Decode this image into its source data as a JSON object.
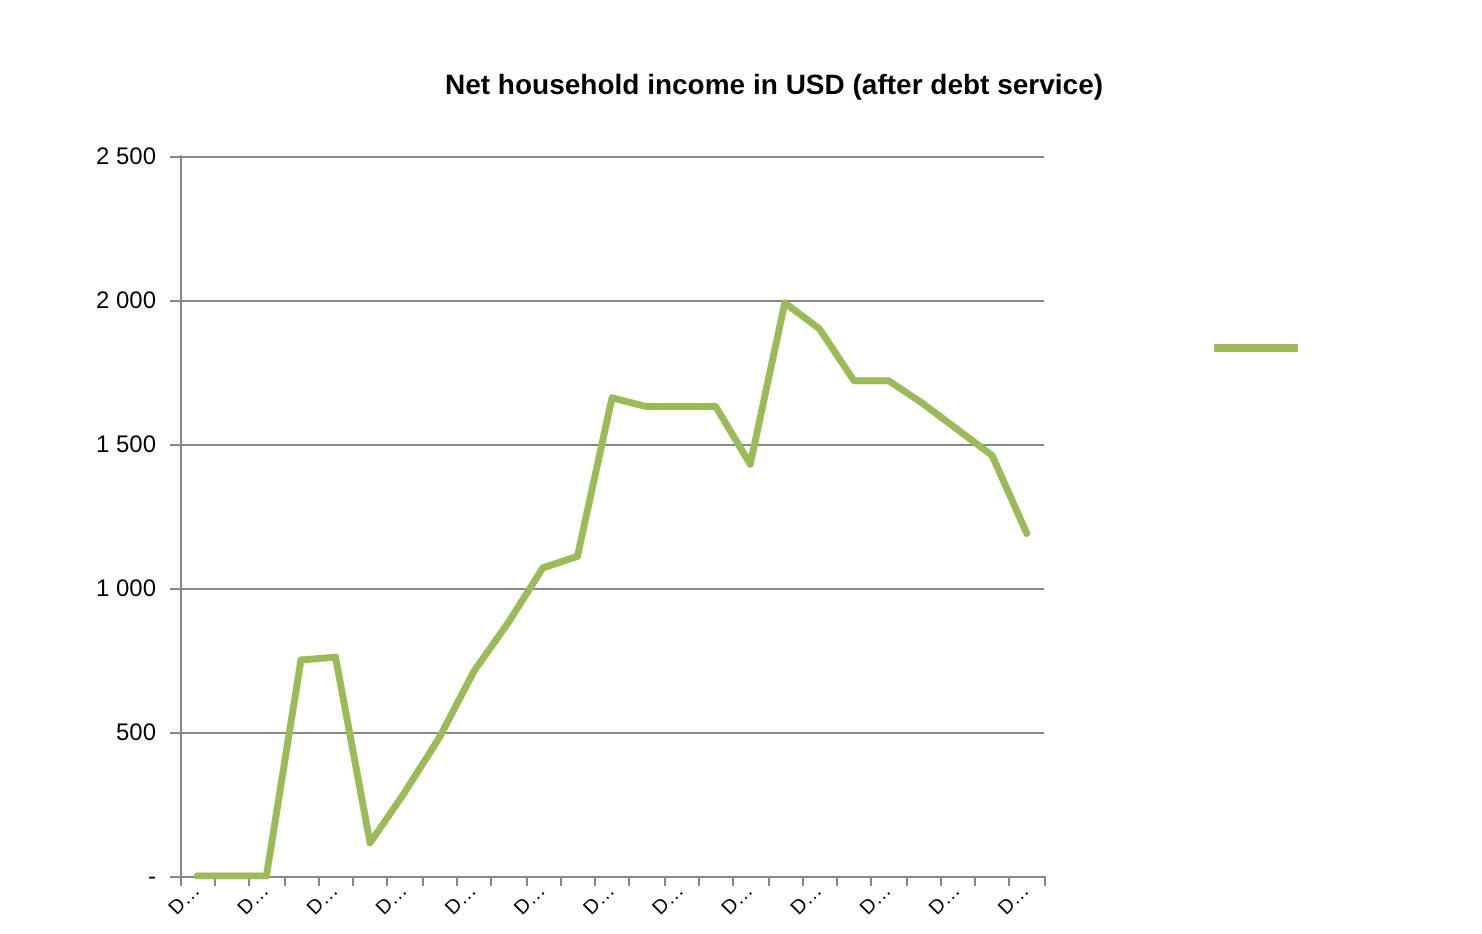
{
  "chart_data": {
    "type": "line",
    "title": "Net household income in USD (after debt service)",
    "categories": [
      "D…",
      null,
      "D…",
      null,
      "D…",
      null,
      "D…",
      null,
      "D…",
      null,
      "D…",
      null,
      "D…",
      null,
      "D…",
      null,
      "D…",
      null,
      "D…",
      null,
      "D…",
      null,
      "D…",
      null,
      "D…"
    ],
    "series": [
      {
        "color": "#9bbb59",
        "values": [
          0,
          0,
          0,
          750,
          760,
          115,
          290,
          480,
          710,
          880,
          1070,
          1110,
          1660,
          1630,
          1630,
          1630,
          1430,
          1990,
          1900,
          1720,
          1720,
          1640,
          1550,
          1460,
          1190
        ]
      }
    ],
    "ylim": [
      0,
      2500
    ],
    "yticks": [
      {
        "value": 0,
        "label": "-"
      },
      {
        "value": 500,
        "label": "500"
      },
      {
        "value": 1000,
        "label": "1 000"
      },
      {
        "value": 1500,
        "label": "1 500"
      },
      {
        "value": 2000,
        "label": "2 000"
      },
      {
        "value": 2500,
        "label": "2 500"
      }
    ],
    "grid": "y",
    "marker": "none",
    "line_style": "solid"
  }
}
